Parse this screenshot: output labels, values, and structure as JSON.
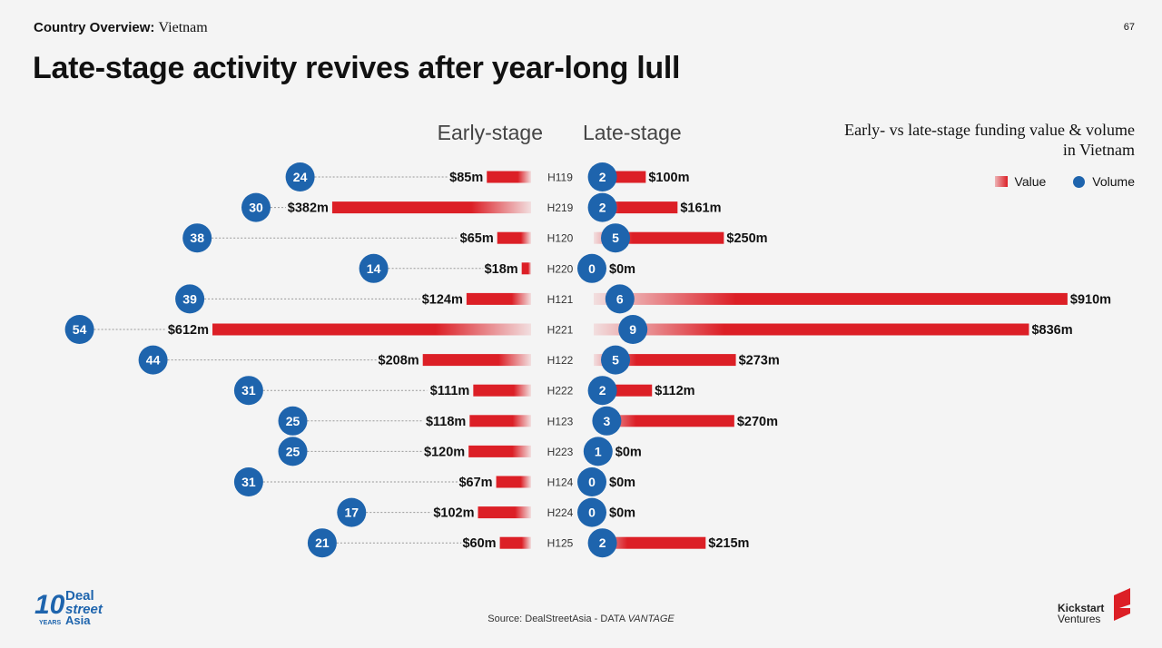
{
  "header": {
    "prefix": "Country Overview:",
    "country": "Vietnam",
    "page_number": "67"
  },
  "title": "Late-stage activity revives after year-long lull",
  "legend": {
    "title": "Early- vs late-stage funding value & volume in Vietnam",
    "value_label": "Value",
    "volume_label": "Volume"
  },
  "source": {
    "prefix": "Source: DealStreetAsia - DATA",
    "brand": "VANTAGE"
  },
  "logos": {
    "left": {
      "years": "10",
      "years_label": "YEARS",
      "line1": "Deal",
      "line2": "street",
      "line3": "Asia"
    },
    "right": {
      "line1": "Kickstart",
      "line2": "Ventures"
    }
  },
  "colors": {
    "bar": "#dc1f26",
    "dot": "#1e64ad",
    "leader": "#999999"
  },
  "chart_data": {
    "type": "bar",
    "early_label": "Early-stage",
    "late_label": "Late-stage",
    "unit": "$m",
    "categories": [
      "H119",
      "H219",
      "H120",
      "H220",
      "H121",
      "H221",
      "H122",
      "H222",
      "H123",
      "H223",
      "H124",
      "H224",
      "H125"
    ],
    "series": [
      {
        "name": "Early-stage",
        "values": [
          85,
          382,
          65,
          18,
          124,
          612,
          208,
          111,
          118,
          120,
          67,
          102,
          60
        ],
        "volume": [
          24,
          30,
          38,
          14,
          39,
          54,
          44,
          31,
          25,
          25,
          31,
          17,
          21
        ],
        "labels": [
          "$85m",
          "$382m",
          "$65m",
          "$18m",
          "$124m",
          "$612m",
          "$208m",
          "$111m",
          "$118m",
          "$120m",
          "$67m",
          "$102m",
          "$60m"
        ]
      },
      {
        "name": "Late-stage",
        "values": [
          100,
          161,
          250,
          0,
          910,
          836,
          273,
          112,
          270,
          0,
          0,
          0,
          215
        ],
        "volume": [
          2,
          2,
          5,
          0,
          6,
          9,
          5,
          2,
          3,
          1,
          0,
          0,
          2
        ],
        "labels": [
          "$100m",
          "$161m",
          "$250m",
          "$0m",
          "$910m",
          "$836m",
          "$273m",
          "$112m",
          "$270m",
          "$0m",
          "$0m",
          "$0m",
          "$215m"
        ]
      }
    ]
  }
}
